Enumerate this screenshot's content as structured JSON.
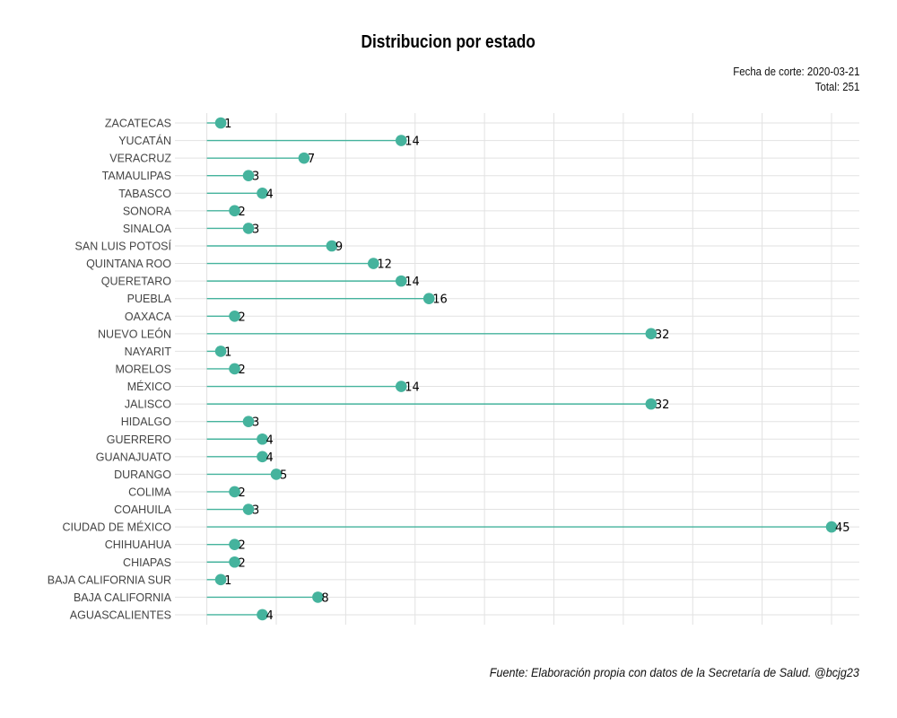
{
  "chart_data": {
    "type": "lollipop",
    "title": "Distribucion por estado",
    "subtitle_lines": [
      "Fecha de corte: 2020-03-21",
      "Total: 251"
    ],
    "caption": "Fuente: Elaboración propia con datos de la Secretaría de Salud. @bcjg23",
    "xlim": [
      -2.3,
      47
    ],
    "grid": true,
    "color": "#45b39d",
    "categories": [
      "ZACATECAS",
      "YUCATÁN",
      "VERACRUZ",
      "TAMAULIPAS",
      "TABASCO",
      "SONORA",
      "SINALOA",
      "SAN LUIS POTOSÍ",
      "QUINTANA ROO",
      "QUERETARO",
      "PUEBLA",
      "OAXACA",
      "NUEVO LEÓN",
      "NAYARIT",
      "MORELOS",
      "MÉXICO",
      "JALISCO",
      "HIDALGO",
      "GUERRERO",
      "GUANAJUATO",
      "DURANGO",
      "COLIMA",
      "COAHUILA",
      "CIUDAD DE MÉXICO",
      "CHIHUAHUA",
      "CHIAPAS",
      "BAJA CALIFORNIA SUR",
      "BAJA CALIFORNIA",
      "AGUASCALIENTES"
    ],
    "values": [
      1,
      14,
      7,
      3,
      4,
      2,
      3,
      9,
      12,
      14,
      16,
      2,
      32,
      1,
      2,
      14,
      32,
      3,
      4,
      4,
      5,
      2,
      3,
      45,
      2,
      2,
      1,
      8,
      4
    ]
  }
}
